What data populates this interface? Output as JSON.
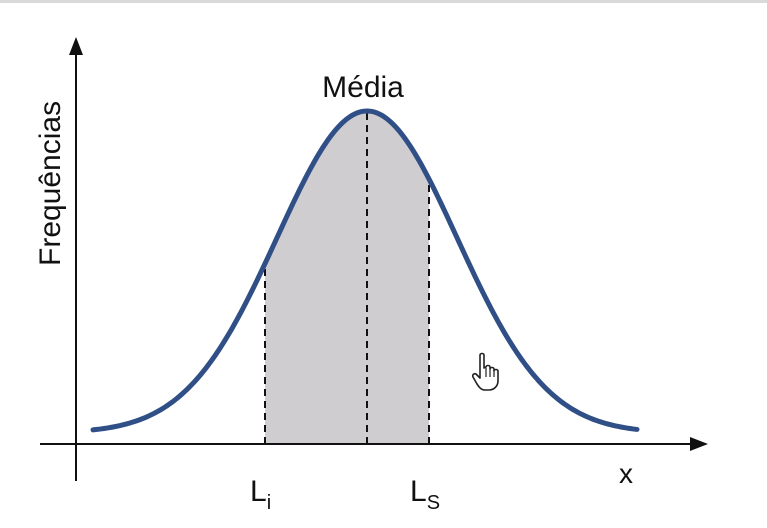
{
  "diagram": {
    "ylabel": "Frequências",
    "xlabel": "x",
    "peak_label": "Média",
    "lower_limit": {
      "base": "L",
      "sub": "i"
    },
    "upper_limit": {
      "base": "L",
      "sub": "S"
    },
    "curve_color": "#2f4f86",
    "shade_color": "#cfcdd0",
    "axis_color": "#111111",
    "cursor_icon": "hand-pointer-icon"
  }
}
